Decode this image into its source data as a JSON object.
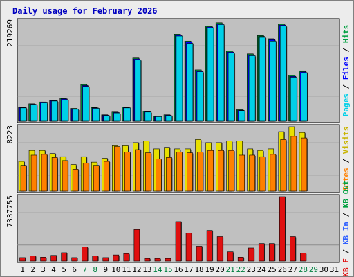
{
  "chart_data": {
    "type": "bar",
    "title": "Daily usage for February 2026",
    "x": [
      1,
      2,
      3,
      4,
      5,
      6,
      7,
      8,
      9,
      10,
      11,
      12,
      13,
      14,
      15,
      16,
      17,
      18,
      19,
      20,
      21,
      22,
      23,
      24,
      25,
      26,
      27,
      28,
      29,
      30,
      31
    ],
    "weekend_days": [
      7,
      8,
      14,
      15,
      21,
      22,
      28,
      29
    ],
    "days_with_data": 28,
    "colors": {
      "background": "#ececec",
      "panel": "#c0c0c0",
      "title": "#0000c0",
      "hits": "#00a040",
      "files": "#0000ff",
      "pages": "#00d0e8",
      "visits": "#e8e000",
      "visits_label": "#c8b400",
      "sites": "#ff8000",
      "kb_in": "#3060ff",
      "kb_out": "#e01010",
      "weekday_label": "#000000",
      "weekend_label": "#008040"
    },
    "panels": [
      {
        "id": "hits-files-pages",
        "ymax_label": "219269",
        "ylim": [
          0,
          219269
        ],
        "legend": [
          {
            "text": "Pages",
            "color": "#00d0e8"
          },
          {
            "text": " / ",
            "color": "#000000"
          },
          {
            "text": "Files",
            "color": "#0000ff"
          },
          {
            "text": " / ",
            "color": "#000000"
          },
          {
            "text": "Hits",
            "color": "#00a040"
          }
        ],
        "series": [
          {
            "name": "Hits",
            "color": "#00a040",
            "values": [
              31000,
              38000,
              42000,
              46000,
              50000,
              28000,
              80000,
              30000,
              14000,
              20000,
              31000,
              138000,
              22000,
              11000,
              14000,
              190000,
              175000,
              112000,
              208000,
              215000,
              153000,
              25000,
              147000,
              187000,
              180000,
              212000,
              100000,
              110000
            ]
          },
          {
            "name": "Files",
            "color": "#0000ff",
            "values": [
              30000,
              37000,
              41000,
              45000,
              49000,
              27000,
              78000,
              29000,
              13000,
              19000,
              30000,
              136000,
              21000,
              10000,
              13000,
              188000,
              173000,
              110000,
              206000,
              213000,
              151000,
              24000,
              145000,
              185000,
              178000,
              210000,
              98000,
              108000
            ]
          },
          {
            "name": "Pages",
            "color": "#00d0e8",
            "values": [
              29000,
              36000,
              40000,
              44000,
              47000,
              26000,
              76000,
              28000,
              12000,
              18000,
              29000,
              134000,
              20000,
              10000,
              12000,
              186000,
              170000,
              108000,
              204000,
              211000,
              149000,
              23000,
              143000,
              183000,
              175000,
              208000,
              96000,
              106000
            ]
          }
        ]
      },
      {
        "id": "visits-sites",
        "ymax_label": "8223",
        "ylim": [
          0,
          8223
        ],
        "legend": [
          {
            "text": "Sites",
            "color": "#ff8000"
          },
          {
            "text": " / ",
            "color": "#000000"
          },
          {
            "text": "Visits",
            "color": "#c8b400"
          }
        ],
        "series": [
          {
            "name": "Visits",
            "color": "#e8e000",
            "values": [
              3800,
              5200,
              5200,
              4800,
              4400,
              3400,
              4400,
              3700,
              4200,
              5800,
              5800,
              6200,
              6400,
              5400,
              5600,
              5400,
              5400,
              6600,
              6200,
              6200,
              6400,
              6400,
              5400,
              5200,
              5400,
              7600,
              8223,
              7500
            ]
          },
          {
            "name": "Sites",
            "color": "#ff8000",
            "values": [
              3300,
              4600,
              4700,
              4300,
              3900,
              2800,
              3600,
              3300,
              3800,
              5700,
              5000,
              5300,
              4900,
              4100,
              4300,
              5000,
              4900,
              5000,
              5200,
              5200,
              5200,
              4600,
              4600,
              4400,
              4700,
              6600,
              7000,
              6800
            ]
          }
        ]
      },
      {
        "id": "kb-in-out",
        "ymax_label": "7337755",
        "ylim": [
          0,
          7337755
        ],
        "legend": [
          {
            "text": "KB F",
            "color": "#e01010"
          },
          {
            "text": " / ",
            "color": "#000000"
          },
          {
            "text": "KB In",
            "color": "#3060ff"
          },
          {
            "text": " / ",
            "color": "#000000"
          },
          {
            "text": "KB Out",
            "color": "#00a040"
          }
        ],
        "series": [
          {
            "name": "KB F",
            "color": "#e01010",
            "values": [
              400000,
              600000,
              450000,
              650000,
              950000,
              400000,
              1600000,
              600000,
              400000,
              700000,
              850000,
              3600000,
              300000,
              300000,
              300000,
              4500000,
              3200000,
              1700000,
              3500000,
              2800000,
              1050000,
              450000,
              1500000,
              2000000,
              2000000,
              7337755,
              2800000,
              900000
            ]
          }
        ]
      }
    ]
  }
}
